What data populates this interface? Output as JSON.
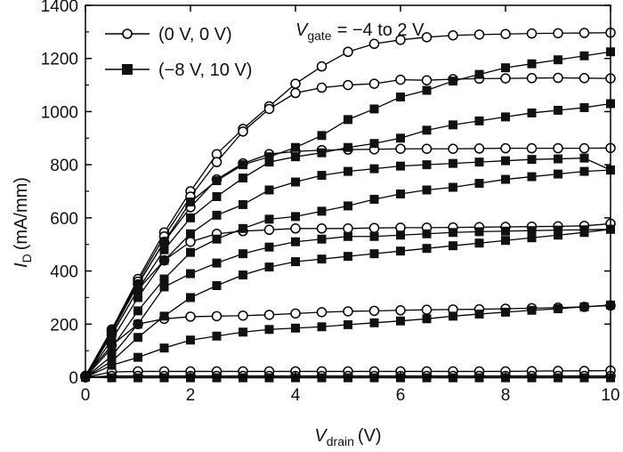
{
  "chart_data": {
    "type": "line",
    "xlabel": {
      "main": "V",
      "sub": "drain",
      "unit": "(V)"
    },
    "ylabel": {
      "main": "I",
      "sub": "D",
      "unit": "(mA/mm)"
    },
    "annotation": {
      "main": "V",
      "sub": "gate",
      "rest": "= −4 to 2 V"
    },
    "xlim": [
      0,
      10
    ],
    "ylim": [
      0,
      1400
    ],
    "xticks": [
      0,
      2,
      4,
      6,
      8,
      10
    ],
    "yticks": [
      0,
      200,
      400,
      600,
      800,
      1000,
      1200,
      1400
    ],
    "grid": false,
    "legend": {
      "position": "top-left",
      "entries": [
        {
          "label": "(0 V, 0 V)",
          "marker": "open-circle"
        },
        {
          "label": "(−8 V, 10 V)",
          "marker": "filled-square"
        }
      ]
    },
    "x": [
      0,
      0.5,
      1,
      1.5,
      2,
      2.5,
      3,
      3.5,
      4,
      4.5,
      5,
      5.5,
      6,
      6.5,
      7,
      7.5,
      8,
      8.5,
      9,
      9.5,
      10
    ],
    "series": [
      {
        "condition": "(0 V, 0 V)",
        "marker": "open-circle",
        "values": [
          5,
          180,
          370,
          545,
          700,
          840,
          935,
          1020,
          1105,
          1170,
          1225,
          1255,
          1270,
          1280,
          1287,
          1290,
          1292,
          1294,
          1295,
          1296,
          1297
        ]
      },
      {
        "condition": "(0 V, 0 V)",
        "marker": "open-circle",
        "values": [
          5,
          175,
          360,
          530,
          680,
          810,
          925,
          1010,
          1070,
          1090,
          1100,
          1105,
          1120,
          1118,
          1122,
          1124,
          1125,
          1126,
          1127,
          1126,
          1125
        ]
      },
      {
        "condition": "(0 V, 0 V)",
        "marker": "open-circle",
        "values": [
          5,
          170,
          350,
          510,
          640,
          745,
          805,
          840,
          850,
          855,
          857,
          858,
          860,
          860,
          860,
          861,
          862,
          862,
          862,
          862,
          863
        ]
      },
      {
        "condition": "(0 V, 0 V)",
        "marker": "open-circle",
        "values": [
          5,
          160,
          330,
          440,
          510,
          540,
          550,
          555,
          560,
          560,
          560,
          562,
          563,
          563,
          564,
          565,
          566,
          567,
          568,
          570,
          578
        ]
      },
      {
        "condition": "(0 V, 0 V)",
        "marker": "open-circle",
        "values": [
          5,
          120,
          200,
          220,
          228,
          230,
          232,
          235,
          240,
          245,
          248,
          250,
          252,
          254,
          255,
          256,
          258,
          260,
          262,
          265,
          270
        ]
      },
      {
        "condition": "(0 V, 0 V)",
        "marker": "open-circle",
        "values": [
          0,
          20,
          22,
          22,
          22,
          22,
          22,
          22,
          22,
          22,
          22,
          22,
          22,
          22,
          22,
          22,
          22,
          23,
          24,
          24,
          25
        ]
      },
      {
        "condition": "(0 V, 0 V)",
        "marker": "open-circle",
        "values": [
          0,
          5,
          5,
          5,
          5,
          5,
          5,
          5,
          5,
          5,
          5,
          5,
          5,
          5,
          5,
          5,
          5,
          5,
          5,
          5,
          5
        ]
      },
      {
        "condition": "(−8 V, 10 V)",
        "marker": "filled-square",
        "values": [
          0,
          170,
          350,
          510,
          660,
          740,
          800,
          830,
          865,
          910,
          970,
          1010,
          1055,
          1080,
          1115,
          1140,
          1165,
          1180,
          1195,
          1210,
          1225
        ]
      },
      {
        "condition": "(−8 V, 10 V)",
        "marker": "filled-square",
        "values": [
          0,
          160,
          330,
          480,
          600,
          680,
          750,
          810,
          830,
          845,
          865,
          880,
          900,
          930,
          950,
          965,
          980,
          995,
          1005,
          1015,
          1030
        ]
      },
      {
        "condition": "(−8 V, 10 V)",
        "marker": "filled-square",
        "values": [
          0,
          140,
          300,
          440,
          540,
          610,
          650,
          705,
          735,
          760,
          775,
          785,
          795,
          800,
          805,
          810,
          815,
          820,
          822,
          825,
          780
        ]
      },
      {
        "condition": "(−8 V, 10 V)",
        "marker": "filled-square",
        "values": [
          0,
          110,
          250,
          370,
          470,
          520,
          560,
          595,
          605,
          625,
          645,
          670,
          690,
          705,
          715,
          730,
          745,
          755,
          765,
          775,
          780
        ]
      },
      {
        "condition": "(−8 V, 10 V)",
        "marker": "filled-square",
        "values": [
          0,
          80,
          200,
          340,
          390,
          430,
          465,
          490,
          510,
          520,
          530,
          530,
          535,
          540,
          545,
          548,
          550,
          552,
          554,
          555,
          557
        ]
      },
      {
        "condition": "(−8 V, 10 V)",
        "marker": "filled-square",
        "values": [
          0,
          60,
          150,
          230,
          300,
          345,
          385,
          415,
          435,
          445,
          455,
          465,
          475,
          485,
          495,
          505,
          515,
          525,
          535,
          545,
          557
        ]
      },
      {
        "condition": "(−8 V, 10 V)",
        "marker": "filled-square",
        "values": [
          0,
          45,
          75,
          110,
          140,
          155,
          170,
          180,
          185,
          190,
          198,
          205,
          212,
          220,
          230,
          238,
          245,
          252,
          258,
          265,
          272
        ]
      },
      {
        "condition": "(−8 V, 10 V)",
        "marker": "filled-square",
        "values": [
          0,
          -2,
          -2,
          -2,
          -2,
          -2,
          -2,
          -2,
          -2,
          -2,
          -2,
          -2,
          -2,
          -2,
          -2,
          -2,
          -2,
          -2,
          -2,
          -2,
          -2
        ]
      }
    ]
  }
}
